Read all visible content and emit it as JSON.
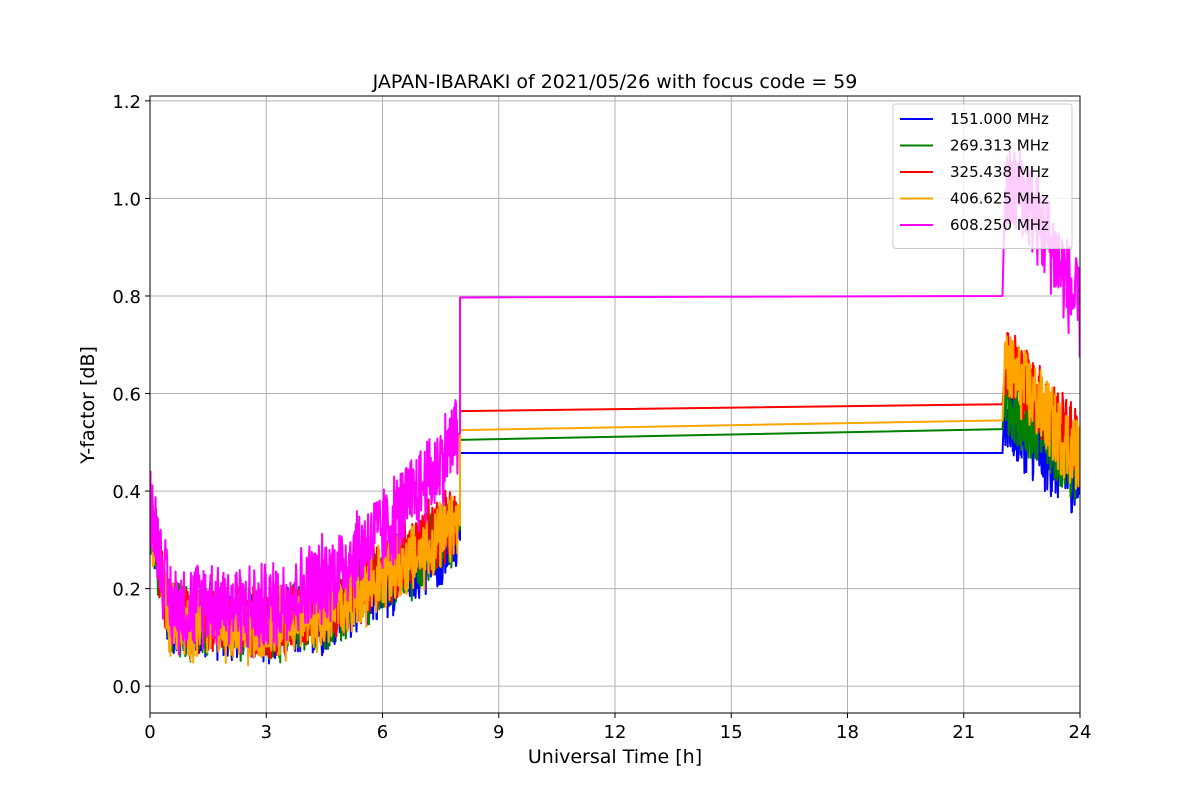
{
  "chart_data": {
    "type": "line",
    "title": "JAPAN-IBARAKI of 2021/05/26 with focus code = 59",
    "xlabel": "Universal Time [h]",
    "ylabel": "Y-factor [dB]",
    "xlim": [
      0,
      24
    ],
    "ylim": [
      -0.055,
      1.21
    ],
    "xticks": [
      0,
      3,
      6,
      9,
      12,
      15,
      18,
      21,
      24
    ],
    "yticks": [
      0.0,
      0.2,
      0.4,
      0.6,
      0.8,
      1.0,
      1.2
    ],
    "grid": true,
    "legend_position": "top-right",
    "gap": [
      8.0,
      22.0
    ],
    "series": [
      {
        "name": "151.000 MHz",
        "color": "#0000ff",
        "points": [
          [
            0.0,
            0.34
          ],
          [
            0.5,
            0.14
          ],
          [
            1.0,
            0.12
          ],
          [
            1.5,
            0.13
          ],
          [
            2.0,
            0.13
          ],
          [
            2.5,
            0.12
          ],
          [
            3.0,
            0.11
          ],
          [
            3.5,
            0.12
          ],
          [
            4.0,
            0.13
          ],
          [
            4.5,
            0.14
          ],
          [
            5.0,
            0.16
          ],
          [
            5.5,
            0.19
          ],
          [
            6.0,
            0.21
          ],
          [
            6.5,
            0.23
          ],
          [
            7.0,
            0.25
          ],
          [
            7.5,
            0.28
          ],
          [
            7.95,
            0.3
          ],
          [
            8.0,
            0.478
          ],
          [
            22.0,
            0.478
          ],
          [
            22.05,
            0.56
          ],
          [
            22.5,
            0.52
          ],
          [
            23.0,
            0.48
          ],
          [
            23.5,
            0.45
          ],
          [
            24.0,
            0.42
          ]
        ]
      },
      {
        "name": "269.313 MHz",
        "color": "#008000",
        "points": [
          [
            0.0,
            0.35
          ],
          [
            0.5,
            0.15
          ],
          [
            1.0,
            0.13
          ],
          [
            1.5,
            0.14
          ],
          [
            2.0,
            0.13
          ],
          [
            2.5,
            0.12
          ],
          [
            3.0,
            0.12
          ],
          [
            3.5,
            0.13
          ],
          [
            4.0,
            0.14
          ],
          [
            4.5,
            0.15
          ],
          [
            5.0,
            0.17
          ],
          [
            5.5,
            0.2
          ],
          [
            6.0,
            0.22
          ],
          [
            6.5,
            0.24
          ],
          [
            7.0,
            0.27
          ],
          [
            7.5,
            0.3
          ],
          [
            7.95,
            0.32
          ],
          [
            8.0,
            0.505
          ],
          [
            22.0,
            0.527
          ],
          [
            22.05,
            0.6
          ],
          [
            22.5,
            0.56
          ],
          [
            23.0,
            0.52
          ],
          [
            23.5,
            0.48
          ],
          [
            24.0,
            0.45
          ]
        ]
      },
      {
        "name": "325.438 MHz",
        "color": "#ff0000",
        "points": [
          [
            0.0,
            0.36
          ],
          [
            0.5,
            0.15
          ],
          [
            1.0,
            0.14
          ],
          [
            1.5,
            0.14
          ],
          [
            2.0,
            0.14
          ],
          [
            2.5,
            0.13
          ],
          [
            3.0,
            0.12
          ],
          [
            3.5,
            0.13
          ],
          [
            4.0,
            0.15
          ],
          [
            4.5,
            0.16
          ],
          [
            5.0,
            0.18
          ],
          [
            5.5,
            0.21
          ],
          [
            6.0,
            0.23
          ],
          [
            6.5,
            0.26
          ],
          [
            7.0,
            0.29
          ],
          [
            7.5,
            0.32
          ],
          [
            7.95,
            0.34
          ],
          [
            8.0,
            0.564
          ],
          [
            22.0,
            0.578
          ],
          [
            22.05,
            0.68
          ],
          [
            22.5,
            0.63
          ],
          [
            23.0,
            0.58
          ],
          [
            23.5,
            0.53
          ],
          [
            24.0,
            0.49
          ]
        ]
      },
      {
        "name": "406.625 MHz",
        "color": "#ffa500",
        "points": [
          [
            0.0,
            0.35
          ],
          [
            0.5,
            0.14
          ],
          [
            1.0,
            0.13
          ],
          [
            1.5,
            0.13
          ],
          [
            2.0,
            0.13
          ],
          [
            2.5,
            0.12
          ],
          [
            3.0,
            0.12
          ],
          [
            3.5,
            0.13
          ],
          [
            4.0,
            0.14
          ],
          [
            4.5,
            0.15
          ],
          [
            5.0,
            0.17
          ],
          [
            5.5,
            0.2
          ],
          [
            6.0,
            0.22
          ],
          [
            6.5,
            0.25
          ],
          [
            7.0,
            0.27
          ],
          [
            7.5,
            0.3
          ],
          [
            7.95,
            0.33
          ],
          [
            8.0,
            0.525
          ],
          [
            22.0,
            0.545
          ],
          [
            22.05,
            0.66
          ],
          [
            22.5,
            0.62
          ],
          [
            23.0,
            0.57
          ],
          [
            23.5,
            0.51
          ],
          [
            24.0,
            0.47
          ]
        ]
      },
      {
        "name": "608.250 MHz",
        "color": "#ff00ff",
        "points": [
          [
            0.0,
            0.38
          ],
          [
            0.5,
            0.17
          ],
          [
            1.0,
            0.16
          ],
          [
            1.5,
            0.18
          ],
          [
            2.0,
            0.17
          ],
          [
            2.5,
            0.16
          ],
          [
            3.0,
            0.16
          ],
          [
            3.5,
            0.18
          ],
          [
            4.0,
            0.2
          ],
          [
            4.5,
            0.22
          ],
          [
            5.0,
            0.25
          ],
          [
            5.5,
            0.29
          ],
          [
            6.0,
            0.32
          ],
          [
            6.5,
            0.36
          ],
          [
            7.0,
            0.41
          ],
          [
            7.5,
            0.46
          ],
          [
            7.95,
            0.52
          ],
          [
            8.0,
            0.797
          ],
          [
            22.0,
            0.8
          ],
          [
            22.05,
            1.0
          ],
          [
            22.5,
            1.02
          ],
          [
            23.0,
            0.94
          ],
          [
            23.5,
            0.86
          ],
          [
            24.0,
            0.76
          ]
        ]
      }
    ]
  }
}
